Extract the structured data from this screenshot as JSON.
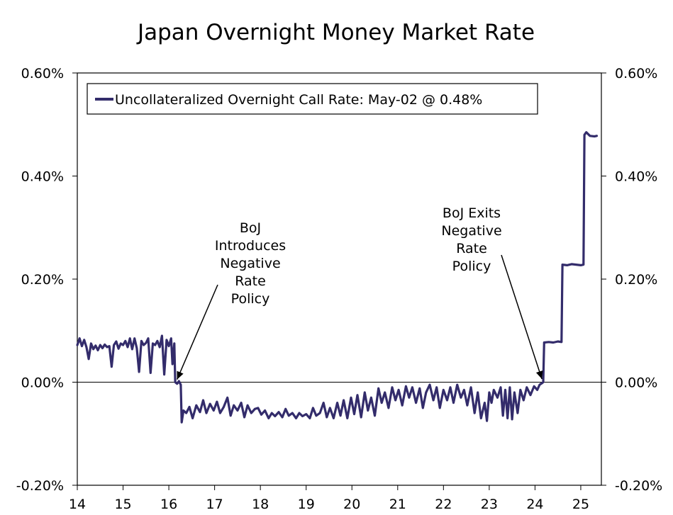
{
  "chart_data": {
    "type": "line",
    "title": "Japan Overnight Money Market Rate",
    "xlabel": "",
    "ylabel": "",
    "xlim": [
      14,
      25.45
    ],
    "ylim": [
      -0.2,
      0.6
    ],
    "x_ticks": [
      14,
      15,
      16,
      17,
      18,
      19,
      20,
      21,
      22,
      23,
      24,
      25
    ],
    "x_tick_labels": [
      "14",
      "15",
      "16",
      "17",
      "18",
      "19",
      "20",
      "21",
      "22",
      "23",
      "24",
      "25"
    ],
    "y_ticks": [
      -0.2,
      0.0,
      0.2,
      0.4,
      0.6
    ],
    "y_tick_labels_left": [
      "-0.20%",
      "0.00%",
      "0.20%",
      "0.40%",
      "0.60%"
    ],
    "y_tick_labels_right": [
      "-0.20%",
      "0.00%",
      "0.20%",
      "0.40%",
      "0.60%"
    ],
    "legend": {
      "entries": [
        "Uncollateralized Overnight Call Rate: May-02 @ 0.48%"
      ],
      "position": "top-left"
    },
    "series": [
      {
        "name": "Uncollateralized Overnight Call Rate",
        "color": "#332c6b",
        "points": [
          [
            14.0,
            0.072
          ],
          [
            14.05,
            0.085
          ],
          [
            14.1,
            0.07
          ],
          [
            14.15,
            0.082
          ],
          [
            14.2,
            0.068
          ],
          [
            14.25,
            0.045
          ],
          [
            14.3,
            0.075
          ],
          [
            14.35,
            0.064
          ],
          [
            14.4,
            0.071
          ],
          [
            14.45,
            0.062
          ],
          [
            14.5,
            0.072
          ],
          [
            14.55,
            0.066
          ],
          [
            14.6,
            0.073
          ],
          [
            14.65,
            0.068
          ],
          [
            14.7,
            0.07
          ],
          [
            14.75,
            0.03
          ],
          [
            14.8,
            0.072
          ],
          [
            14.85,
            0.079
          ],
          [
            14.9,
            0.065
          ],
          [
            14.95,
            0.075
          ],
          [
            15.0,
            0.072
          ],
          [
            15.05,
            0.08
          ],
          [
            15.1,
            0.068
          ],
          [
            15.15,
            0.085
          ],
          [
            15.2,
            0.064
          ],
          [
            15.25,
            0.085
          ],
          [
            15.3,
            0.066
          ],
          [
            15.35,
            0.02
          ],
          [
            15.4,
            0.08
          ],
          [
            15.45,
            0.072
          ],
          [
            15.5,
            0.076
          ],
          [
            15.55,
            0.085
          ],
          [
            15.6,
            0.018
          ],
          [
            15.65,
            0.075
          ],
          [
            15.7,
            0.072
          ],
          [
            15.75,
            0.08
          ],
          [
            15.8,
            0.068
          ],
          [
            15.85,
            0.09
          ],
          [
            15.9,
            0.015
          ],
          [
            15.95,
            0.082
          ],
          [
            16.0,
            0.07
          ],
          [
            16.05,
            0.085
          ],
          [
            16.08,
            0.035
          ],
          [
            16.12,
            0.075
          ],
          [
            16.14,
            0.0
          ],
          [
            16.18,
            -0.003
          ],
          [
            16.22,
            0.002
          ],
          [
            16.26,
            -0.005
          ],
          [
            16.28,
            -0.078
          ],
          [
            16.32,
            -0.055
          ],
          [
            16.38,
            -0.06
          ],
          [
            16.45,
            -0.048
          ],
          [
            16.52,
            -0.07
          ],
          [
            16.6,
            -0.045
          ],
          [
            16.68,
            -0.058
          ],
          [
            16.75,
            -0.035
          ],
          [
            16.82,
            -0.06
          ],
          [
            16.9,
            -0.042
          ],
          [
            16.98,
            -0.055
          ],
          [
            17.05,
            -0.038
          ],
          [
            17.12,
            -0.06
          ],
          [
            17.2,
            -0.048
          ],
          [
            17.28,
            -0.03
          ],
          [
            17.35,
            -0.065
          ],
          [
            17.42,
            -0.045
          ],
          [
            17.5,
            -0.055
          ],
          [
            17.58,
            -0.04
          ],
          [
            17.65,
            -0.068
          ],
          [
            17.72,
            -0.045
          ],
          [
            17.8,
            -0.06
          ],
          [
            17.88,
            -0.052
          ],
          [
            17.95,
            -0.05
          ],
          [
            18.02,
            -0.063
          ],
          [
            18.1,
            -0.055
          ],
          [
            18.18,
            -0.07
          ],
          [
            18.25,
            -0.06
          ],
          [
            18.32,
            -0.066
          ],
          [
            18.4,
            -0.058
          ],
          [
            18.48,
            -0.068
          ],
          [
            18.55,
            -0.052
          ],
          [
            18.62,
            -0.065
          ],
          [
            18.7,
            -0.06
          ],
          [
            18.78,
            -0.07
          ],
          [
            18.85,
            -0.06
          ],
          [
            18.92,
            -0.066
          ],
          [
            19.0,
            -0.062
          ],
          [
            19.08,
            -0.07
          ],
          [
            19.15,
            -0.05
          ],
          [
            19.22,
            -0.065
          ],
          [
            19.3,
            -0.06
          ],
          [
            19.38,
            -0.04
          ],
          [
            19.45,
            -0.068
          ],
          [
            19.52,
            -0.05
          ],
          [
            19.6,
            -0.07
          ],
          [
            19.68,
            -0.04
          ],
          [
            19.75,
            -0.065
          ],
          [
            19.82,
            -0.035
          ],
          [
            19.9,
            -0.07
          ],
          [
            19.98,
            -0.03
          ],
          [
            20.05,
            -0.062
          ],
          [
            20.12,
            -0.025
          ],
          [
            20.2,
            -0.068
          ],
          [
            20.28,
            -0.02
          ],
          [
            20.35,
            -0.055
          ],
          [
            20.42,
            -0.03
          ],
          [
            20.5,
            -0.065
          ],
          [
            20.58,
            -0.012
          ],
          [
            20.65,
            -0.04
          ],
          [
            20.72,
            -0.02
          ],
          [
            20.8,
            -0.05
          ],
          [
            20.88,
            -0.01
          ],
          [
            20.95,
            -0.035
          ],
          [
            21.02,
            -0.015
          ],
          [
            21.1,
            -0.045
          ],
          [
            21.18,
            -0.008
          ],
          [
            21.25,
            -0.03
          ],
          [
            21.32,
            -0.01
          ],
          [
            21.4,
            -0.04
          ],
          [
            21.48,
            -0.012
          ],
          [
            21.55,
            -0.05
          ],
          [
            21.62,
            -0.02
          ],
          [
            21.7,
            -0.005
          ],
          [
            21.78,
            -0.035
          ],
          [
            21.85,
            -0.01
          ],
          [
            21.92,
            -0.05
          ],
          [
            22.0,
            -0.015
          ],
          [
            22.08,
            -0.035
          ],
          [
            22.15,
            -0.01
          ],
          [
            22.22,
            -0.04
          ],
          [
            22.3,
            -0.005
          ],
          [
            22.38,
            -0.03
          ],
          [
            22.45,
            -0.015
          ],
          [
            22.52,
            -0.045
          ],
          [
            22.6,
            -0.01
          ],
          [
            22.68,
            -0.06
          ],
          [
            22.75,
            -0.02
          ],
          [
            22.82,
            -0.07
          ],
          [
            22.9,
            -0.04
          ],
          [
            22.95,
            -0.075
          ],
          [
            23.0,
            -0.02
          ],
          [
            23.05,
            -0.04
          ],
          [
            23.1,
            -0.015
          ],
          [
            23.18,
            -0.03
          ],
          [
            23.25,
            -0.01
          ],
          [
            23.3,
            -0.065
          ],
          [
            23.35,
            -0.015
          ],
          [
            23.4,
            -0.07
          ],
          [
            23.45,
            -0.01
          ],
          [
            23.5,
            -0.072
          ],
          [
            23.55,
            -0.02
          ],
          [
            23.62,
            -0.06
          ],
          [
            23.68,
            -0.015
          ],
          [
            23.75,
            -0.035
          ],
          [
            23.82,
            -0.01
          ],
          [
            23.9,
            -0.025
          ],
          [
            23.98,
            -0.008
          ],
          [
            24.05,
            -0.015
          ],
          [
            24.1,
            -0.005
          ],
          [
            24.15,
            -0.002
          ],
          [
            24.18,
            0.0
          ],
          [
            24.2,
            0.077
          ],
          [
            24.3,
            0.078
          ],
          [
            24.4,
            0.077
          ],
          [
            24.5,
            0.079
          ],
          [
            24.58,
            0.078
          ],
          [
            24.6,
            0.228
          ],
          [
            24.7,
            0.227
          ],
          [
            24.8,
            0.229
          ],
          [
            24.9,
            0.228
          ],
          [
            25.0,
            0.227
          ],
          [
            25.06,
            0.228
          ],
          [
            25.08,
            0.48
          ],
          [
            25.12,
            0.485
          ],
          [
            25.2,
            0.478
          ],
          [
            25.3,
            0.477
          ],
          [
            25.35,
            0.478
          ]
        ]
      }
    ],
    "annotations": [
      {
        "lines": [
          "BoJ",
          "Introduces",
          "Negative",
          "Rate",
          "Policy"
        ],
        "points_to": [
          16.18,
          -0.003
        ]
      },
      {
        "lines": [
          "BoJ Exits",
          "Negative",
          "Rate",
          "Policy"
        ],
        "points_to": [
          24.15,
          -0.002
        ]
      }
    ]
  }
}
